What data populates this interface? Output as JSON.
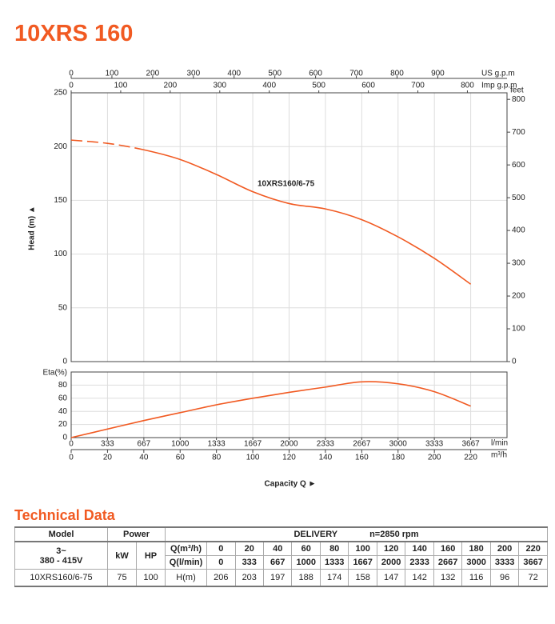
{
  "header": {
    "title": "10XRS 160"
  },
  "chart_data": [
    {
      "type": "line",
      "x": [
        0,
        20,
        40,
        60,
        80,
        100,
        120,
        140,
        160,
        180,
        200,
        220
      ],
      "xlim": [
        0,
        240
      ],
      "ylim": [
        0,
        250
      ],
      "yticks": [
        0,
        50,
        100,
        150,
        200,
        250
      ],
      "y_label": "Head (m) ▲",
      "y2lim": [
        0,
        820
      ],
      "y2ticks": [
        0,
        100,
        200,
        300,
        400,
        500,
        600,
        700,
        800
      ],
      "y2_label": "feet",
      "top_axes": [
        {
          "label": "US g.p.m",
          "lim": [
            0,
            1070
          ],
          "ticks": [
            0,
            100,
            200,
            300,
            400,
            500,
            600,
            700,
            800,
            900
          ]
        },
        {
          "label": "Imp g.p.m",
          "lim": [
            0,
            880
          ],
          "ticks": [
            0,
            100,
            200,
            300,
            400,
            500,
            600,
            700,
            800
          ]
        }
      ],
      "grid": true,
      "series": [
        {
          "name": "10XRS160/6-75",
          "color": "#f15a22",
          "values": [
            206,
            203,
            197,
            188,
            174,
            158,
            147,
            142,
            132,
            116,
            96,
            72
          ]
        }
      ]
    },
    {
      "type": "line",
      "y_label": "Eta(%)",
      "x": [
        0,
        20,
        40,
        60,
        80,
        100,
        120,
        140,
        160,
        180,
        200,
        220
      ],
      "xlim": [
        0,
        240
      ],
      "xticks": [
        0,
        20,
        40,
        60,
        80,
        100,
        120,
        140,
        160,
        180,
        200,
        220
      ],
      "x_unit": "m³/h",
      "x2lim": [
        0,
        4000
      ],
      "x2ticks": [
        0,
        333,
        667,
        1000,
        1333,
        1667,
        2000,
        2333,
        2667,
        3000,
        3333,
        3667
      ],
      "x2_unit": "l/min",
      "ylim": [
        0,
        100
      ],
      "yticks": [
        0,
        20,
        40,
        60,
        80
      ],
      "x_label": "Capacity Q ►",
      "grid": true,
      "series": [
        {
          "color": "#f15a22",
          "values": [
            0,
            13,
            26,
            38,
            50,
            60,
            69,
            77,
            85,
            82,
            70,
            48
          ]
        }
      ]
    }
  ],
  "table": {
    "title": "Technical Data",
    "head": [
      "Model",
      "Power",
      "DELIVERY",
      "n=2850 rpm"
    ],
    "supply": [
      "3~",
      "380 - 415V"
    ],
    "power_units": [
      "kW",
      "HP"
    ],
    "q_m3h_label": "Q(m³/h)",
    "q_m3h": [
      0,
      20,
      40,
      60,
      80,
      100,
      120,
      140,
      160,
      180,
      200,
      220
    ],
    "q_lmin_label": "Q(l/min)",
    "q_lmin": [
      0,
      333,
      667,
      1000,
      1333,
      1667,
      2000,
      2333,
      2667,
      3000,
      3333,
      3667
    ],
    "rows": [
      {
        "model": "10XRS160/6-75",
        "kw": 75,
        "hp": 100,
        "h_label": "H(m)",
        "h": [
          206,
          203,
          197,
          188,
          174,
          158,
          147,
          142,
          132,
          116,
          96,
          72
        ]
      }
    ]
  }
}
